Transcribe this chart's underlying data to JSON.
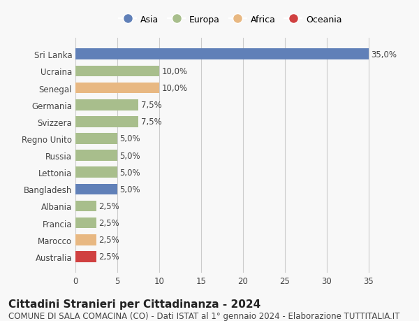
{
  "countries": [
    "Sri Lanka",
    "Ucraina",
    "Senegal",
    "Germania",
    "Svizzera",
    "Regno Unito",
    "Russia",
    "Lettonia",
    "Bangladesh",
    "Albania",
    "Francia",
    "Marocco",
    "Australia"
  ],
  "values": [
    35.0,
    10.0,
    10.0,
    7.5,
    7.5,
    5.0,
    5.0,
    5.0,
    5.0,
    2.5,
    2.5,
    2.5,
    2.5
  ],
  "labels": [
    "35,0%",
    "10,0%",
    "10,0%",
    "7,5%",
    "7,5%",
    "5,0%",
    "5,0%",
    "5,0%",
    "5,0%",
    "2,5%",
    "2,5%",
    "2,5%",
    "2,5%"
  ],
  "continents": [
    "Asia",
    "Europa",
    "Africa",
    "Europa",
    "Europa",
    "Europa",
    "Europa",
    "Europa",
    "Asia",
    "Europa",
    "Europa",
    "Africa",
    "Oceania"
  ],
  "colors": {
    "Asia": "#6080b8",
    "Europa": "#a8be8c",
    "Africa": "#e8b882",
    "Oceania": "#d04040"
  },
  "legend_order": [
    "Asia",
    "Europa",
    "Africa",
    "Oceania"
  ],
  "xlim": [
    0,
    37
  ],
  "xticks": [
    0,
    5,
    10,
    15,
    20,
    25,
    30,
    35
  ],
  "title": "Cittadini Stranieri per Cittadinanza - 2024",
  "subtitle": "COMUNE DI SALA COMACINA (CO) - Dati ISTAT al 1° gennaio 2024 - Elaborazione TUTTITALIA.IT",
  "title_fontsize": 11,
  "subtitle_fontsize": 8.5,
  "background_color": "#f8f8f8",
  "grid_color": "#cccccc",
  "bar_height": 0.65
}
